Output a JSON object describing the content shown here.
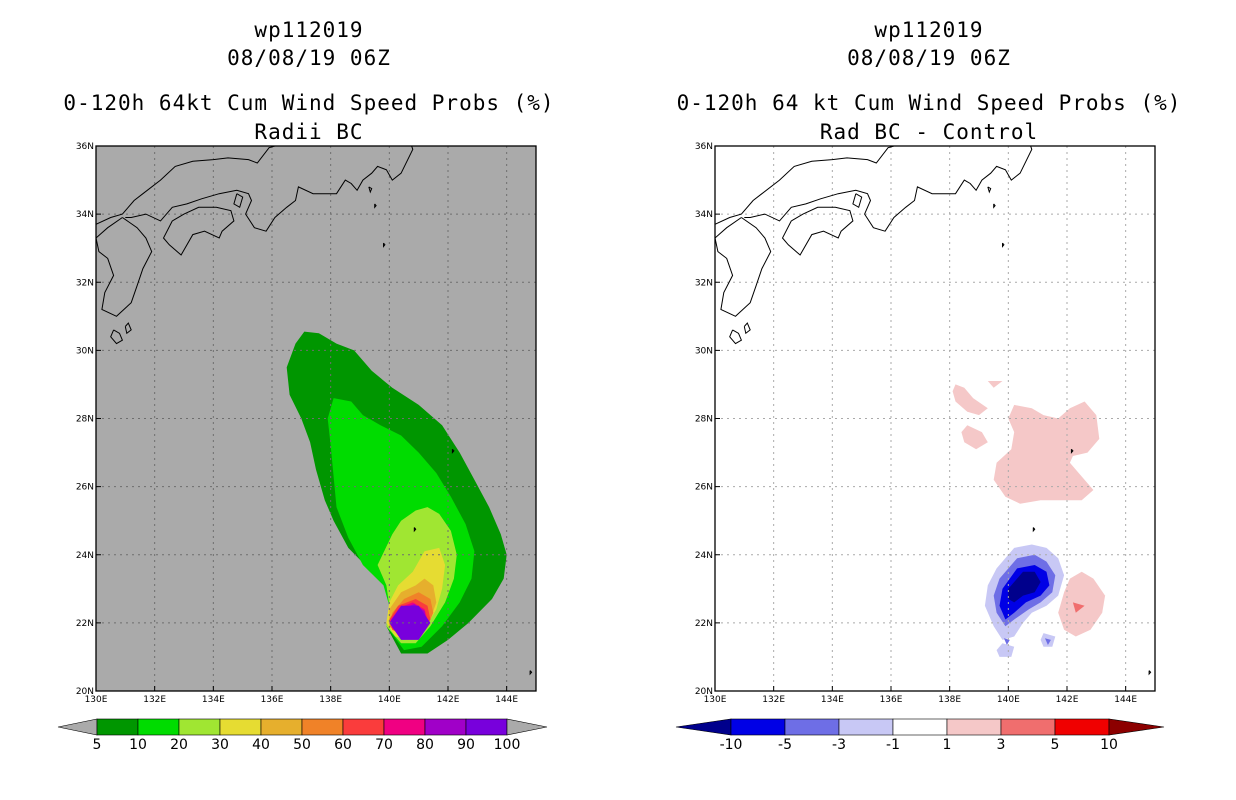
{
  "panels": [
    {
      "title_line1": "wp112019",
      "title_line2": "08/08/19 06Z",
      "title_line3": "0-120h 64kt Cum Wind Speed Probs (%)",
      "title_line4": "Radii BC"
    },
    {
      "title_line1": "wp112019",
      "title_line2": "08/08/19 06Z",
      "title_line3": "0-120h 64 kt Cum Wind Speed Probs (%)",
      "title_line4": "Rad BC - Control"
    }
  ],
  "chart_data": [
    {
      "type": "heatmap",
      "title": "0-120h 64kt Cum Wind Speed Probs (%) — Radii BC",
      "xlim": [
        130,
        145
      ],
      "ylim": [
        20,
        36
      ],
      "x_ticks": [
        "130E",
        "132E",
        "134E",
        "136E",
        "138E",
        "140E",
        "142E",
        "144E"
      ],
      "y_ticks": [
        "20N",
        "22N",
        "24N",
        "26N",
        "28N",
        "30N",
        "32N",
        "34N",
        "36N"
      ],
      "colorbar_labels": [
        "5",
        "10",
        "20",
        "30",
        "40",
        "50",
        "60",
        "70",
        "80",
        "90",
        "100"
      ],
      "colorbar_colors": [
        "#009600",
        "#00dc00",
        "#a0e632",
        "#e6dc32",
        "#e6af2d",
        "#f08228",
        "#fa3c3c",
        "#f00082",
        "#a000c8",
        "#7800dc"
      ],
      "background_color": "#aaaaaa",
      "max_probability_center": [
        140.8,
        22.0
      ]
    },
    {
      "type": "heatmap",
      "title": "0-120h 64 kt Cum Wind Speed Probs (%) — Rad BC - Control",
      "xlim": [
        130,
        145
      ],
      "ylim": [
        20,
        36
      ],
      "x_ticks": [
        "130E",
        "132E",
        "134E",
        "136E",
        "138E",
        "140E",
        "142E",
        "144E"
      ],
      "y_ticks": [
        "20N",
        "22N",
        "24N",
        "26N",
        "28N",
        "30N",
        "32N",
        "34N",
        "36N"
      ],
      "colorbar_labels": [
        "-10",
        "-5",
        "-3",
        "-1",
        "1",
        "3",
        "5",
        "10"
      ],
      "colorbar_colors": [
        "#00008c",
        "#0000e6",
        "#6e6ee6",
        "#c8c8f5",
        "#ffffff",
        "#f5c8c8",
        "#f06e6e",
        "#f00000",
        "#8c0000"
      ],
      "background_color": "#ffffff",
      "min_difference_center": [
        140.5,
        23.0
      ]
    }
  ]
}
